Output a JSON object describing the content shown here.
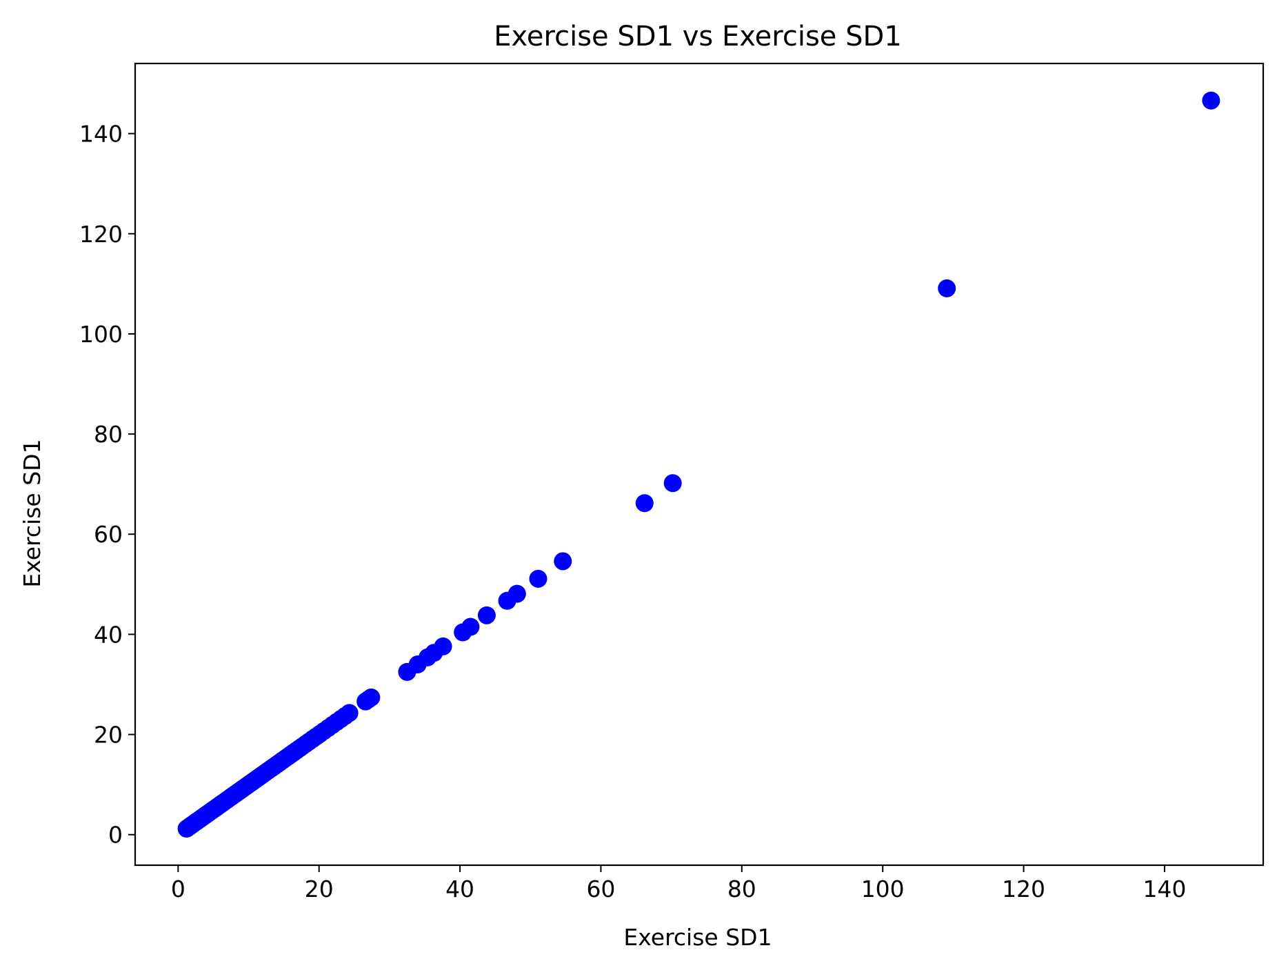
{
  "chart_data": {
    "type": "scatter",
    "title": "Exercise SD1 vs Exercise SD1",
    "xlabel": "Exercise SD1",
    "ylabel": "Exercise SD1",
    "xlim": [
      -6.1,
      154
    ],
    "ylim": [
      -6.1,
      154
    ],
    "xticks": [
      0,
      20,
      40,
      60,
      80,
      100,
      120,
      140
    ],
    "yticks": [
      0,
      20,
      40,
      60,
      80,
      100,
      120,
      140
    ],
    "grid": false,
    "legend": "none",
    "marker_color": "#0000ff",
    "series": [
      {
        "points": [
          [
            1.2,
            1.2
          ],
          [
            1.5,
            1.5
          ],
          [
            1.8,
            1.8
          ],
          [
            2.1,
            2.1
          ],
          [
            2.4,
            2.4
          ],
          [
            2.7,
            2.7
          ],
          [
            3.0,
            3.0
          ],
          [
            3.3,
            3.3
          ],
          [
            3.6,
            3.6
          ],
          [
            3.9,
            3.9
          ],
          [
            4.2,
            4.2
          ],
          [
            4.5,
            4.5
          ],
          [
            4.8,
            4.8
          ],
          [
            5.1,
            5.1
          ],
          [
            5.4,
            5.4
          ],
          [
            5.7,
            5.7
          ],
          [
            6.0,
            6.0
          ],
          [
            6.3,
            6.3
          ],
          [
            6.6,
            6.6
          ],
          [
            6.9,
            6.9
          ],
          [
            7.2,
            7.2
          ],
          [
            7.5,
            7.5
          ],
          [
            7.8,
            7.8
          ],
          [
            8.1,
            8.1
          ],
          [
            8.4,
            8.4
          ],
          [
            8.7,
            8.7
          ],
          [
            9.0,
            9.0
          ],
          [
            9.3,
            9.3
          ],
          [
            9.6,
            9.6
          ],
          [
            9.9,
            9.9
          ],
          [
            10.2,
            10.2
          ],
          [
            10.5,
            10.5
          ],
          [
            10.8,
            10.8
          ],
          [
            11.1,
            11.1
          ],
          [
            11.4,
            11.4
          ],
          [
            11.7,
            11.7
          ],
          [
            12.0,
            12.0
          ],
          [
            12.4,
            12.4
          ],
          [
            12.8,
            12.8
          ],
          [
            13.2,
            13.2
          ],
          [
            13.6,
            13.6
          ],
          [
            14.0,
            14.0
          ],
          [
            14.4,
            14.4
          ],
          [
            14.8,
            14.8
          ],
          [
            15.2,
            15.2
          ],
          [
            15.6,
            15.6
          ],
          [
            16.0,
            16.0
          ],
          [
            16.4,
            16.4
          ],
          [
            16.8,
            16.8
          ],
          [
            17.2,
            17.2
          ],
          [
            17.6,
            17.6
          ],
          [
            18.1,
            18.1
          ],
          [
            18.6,
            18.6
          ],
          [
            19.1,
            19.1
          ],
          [
            19.6,
            19.6
          ],
          [
            20.1,
            20.1
          ],
          [
            20.7,
            20.7
          ],
          [
            21.3,
            21.3
          ],
          [
            21.9,
            21.9
          ],
          [
            22.5,
            22.5
          ],
          [
            23.1,
            23.1
          ],
          [
            23.7,
            23.7
          ],
          [
            24.3,
            24.3
          ],
          [
            26.6,
            26.6
          ],
          [
            27.0,
            27.0
          ],
          [
            27.4,
            27.4
          ],
          [
            32.5,
            32.5
          ],
          [
            34.0,
            34.0
          ],
          [
            35.4,
            35.4
          ],
          [
            36.3,
            36.3
          ],
          [
            37.6,
            37.6
          ],
          [
            40.4,
            40.4
          ],
          [
            41.5,
            41.5
          ],
          [
            43.8,
            43.8
          ],
          [
            46.7,
            46.7
          ],
          [
            48.1,
            48.1
          ],
          [
            51.1,
            51.1
          ],
          [
            54.6,
            54.6
          ],
          [
            66.2,
            66.2
          ],
          [
            70.2,
            70.2
          ],
          [
            109.1,
            109.1
          ],
          [
            146.6,
            146.6
          ]
        ]
      }
    ]
  }
}
